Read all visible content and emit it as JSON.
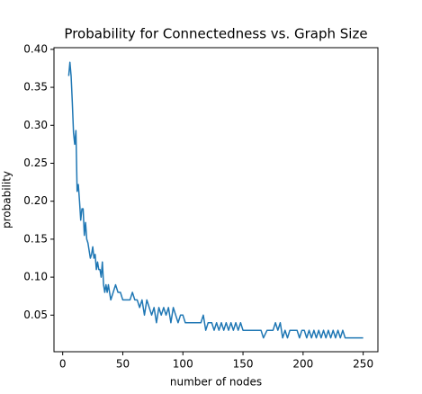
{
  "chart_data": {
    "type": "line",
    "title": "Probability for Connectedness vs. Graph Size",
    "xlabel": "number of nodes",
    "ylabel": "probability",
    "x": [
      5,
      6,
      7,
      8,
      9,
      10,
      11,
      12,
      13,
      14,
      15,
      16,
      17,
      18,
      19,
      20,
      21,
      22,
      23,
      24,
      25,
      26,
      27,
      28,
      29,
      30,
      31,
      32,
      33,
      34,
      35,
      36,
      37,
      38,
      39,
      40,
      42,
      44,
      46,
      48,
      50,
      52,
      54,
      56,
      58,
      60,
      62,
      64,
      66,
      68,
      70,
      72,
      74,
      76,
      78,
      80,
      82,
      84,
      86,
      88,
      90,
      92,
      94,
      96,
      98,
      100,
      102,
      105,
      110,
      115,
      117,
      119,
      121,
      124,
      126,
      128,
      130,
      132,
      134,
      136,
      138,
      140,
      142,
      144,
      146,
      148,
      150,
      160,
      165,
      167,
      170,
      175,
      177,
      179,
      181,
      183,
      185,
      187,
      189,
      195,
      197,
      199,
      201,
      203,
      205,
      207,
      209,
      211,
      213,
      215,
      217,
      219,
      221,
      223,
      225,
      227,
      229,
      231,
      233,
      235,
      240,
      250
    ],
    "series": [
      {
        "name": "probability",
        "color": "#1f77b4",
        "values": [
          0.365,
          0.383,
          0.365,
          0.33,
          0.29,
          0.275,
          0.293,
          0.213,
          0.222,
          0.2,
          0.175,
          0.19,
          0.19,
          0.155,
          0.172,
          0.15,
          0.145,
          0.135,
          0.125,
          0.13,
          0.14,
          0.125,
          0.13,
          0.11,
          0.12,
          0.11,
          0.11,
          0.1,
          0.12,
          0.09,
          0.08,
          0.09,
          0.08,
          0.09,
          0.08,
          0.07,
          0.08,
          0.09,
          0.08,
          0.08,
          0.07,
          0.07,
          0.07,
          0.07,
          0.08,
          0.07,
          0.07,
          0.06,
          0.07,
          0.05,
          0.07,
          0.06,
          0.05,
          0.06,
          0.04,
          0.06,
          0.05,
          0.06,
          0.05,
          0.06,
          0.04,
          0.06,
          0.05,
          0.04,
          0.05,
          0.05,
          0.04,
          0.04,
          0.04,
          0.04,
          0.05,
          0.03,
          0.04,
          0.04,
          0.03,
          0.04,
          0.03,
          0.04,
          0.03,
          0.04,
          0.03,
          0.04,
          0.03,
          0.04,
          0.03,
          0.04,
          0.03,
          0.03,
          0.03,
          0.02,
          0.03,
          0.03,
          0.04,
          0.03,
          0.04,
          0.02,
          0.03,
          0.02,
          0.03,
          0.03,
          0.02,
          0.03,
          0.03,
          0.02,
          0.03,
          0.02,
          0.03,
          0.02,
          0.03,
          0.02,
          0.03,
          0.02,
          0.03,
          0.02,
          0.03,
          0.02,
          0.03,
          0.02,
          0.03,
          0.02,
          0.02,
          0.02
        ]
      }
    ],
    "xlim": [
      -7.25,
      262.25
    ],
    "xticks": [
      0,
      50,
      100,
      150,
      200,
      250
    ],
    "ylim": [
      0.0018,
      0.4022
    ],
    "yticks": [
      0.05,
      {
        "value": 0.1,
        "label": "0.10"
      },
      0.15,
      {
        "value": 0.2,
        "label": "0.20"
      },
      0.25,
      {
        "value": 0.3,
        "label": "0.30"
      },
      0.35,
      {
        "value": 0.4,
        "label": "0.40"
      }
    ],
    "grid": false
  }
}
